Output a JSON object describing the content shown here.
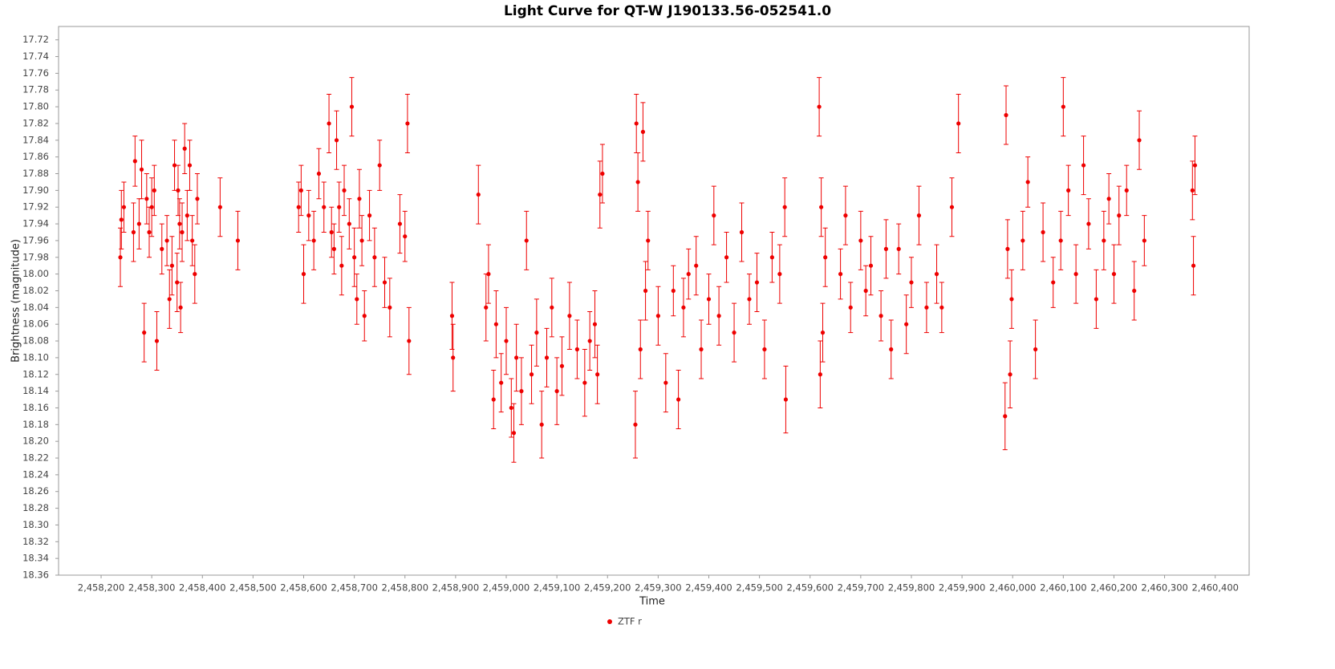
{
  "chart_data": {
    "type": "scatter",
    "title": "Light Curve for QT-W J190133.56-052541.0",
    "x_label": "Time",
    "y_label": "Brightness (magnitude)",
    "ylim": [
      18.36,
      17.704
    ],
    "xlim": [
      2458116,
      2460467
    ],
    "legend": "bottom",
    "grid": false,
    "xticks": [
      {
        "value": 2458200,
        "label": "2,458,200"
      },
      {
        "value": 2458300,
        "label": "2,458,300"
      },
      {
        "value": 2458400,
        "label": "2,458,400"
      },
      {
        "value": 2458500,
        "label": "2,458,500"
      },
      {
        "value": 2458600,
        "label": "2,458,600"
      },
      {
        "value": 2458700,
        "label": "2,458,700"
      },
      {
        "value": 2458800,
        "label": "2,458,800"
      },
      {
        "value": 2458900,
        "label": "2,458,900"
      },
      {
        "value": 2459000,
        "label": "2,459,000"
      },
      {
        "value": 2459100,
        "label": "2,459,100"
      },
      {
        "value": 2459200,
        "label": "2,459,200"
      },
      {
        "value": 2459300,
        "label": "2,459,300"
      },
      {
        "value": 2459400,
        "label": "2,459,400"
      },
      {
        "value": 2459500,
        "label": "2,459,500"
      },
      {
        "value": 2459600,
        "label": "2,459,600"
      },
      {
        "value": 2459700,
        "label": "2,459,700"
      },
      {
        "value": 2459800,
        "label": "2,459,800"
      },
      {
        "value": 2459900,
        "label": "2,459,900"
      },
      {
        "value": 2460000,
        "label": "2,460,000"
      },
      {
        "value": 2460100,
        "label": "2,460,100"
      },
      {
        "value": 2460200,
        "label": "2,460,200"
      },
      {
        "value": 2460300,
        "label": "2,460,300"
      },
      {
        "value": 2460400,
        "label": "2,460,400"
      }
    ],
    "yticks": [
      17.72,
      17.74,
      17.76,
      17.78,
      {
        "value": 17.8,
        "label": "17.80"
      },
      17.82,
      17.84,
      17.86,
      17.88,
      {
        "value": 17.9,
        "label": "17.90"
      },
      17.92,
      17.94,
      17.96,
      17.98,
      {
        "value": 18.0,
        "label": "18.00"
      },
      18.02,
      18.04,
      18.06,
      18.08,
      {
        "value": 18.1,
        "label": "18.10"
      },
      18.12,
      18.14,
      18.16,
      18.18,
      {
        "value": 18.2,
        "label": "18.20"
      },
      18.22,
      18.24,
      18.26,
      18.28,
      {
        "value": 18.3,
        "label": "18.30"
      },
      18.32,
      18.34,
      18.36
    ],
    "series": [
      {
        "name": "ZTF r",
        "color": "#ee0000",
        "x": [
          2458238,
          2458240,
          2458245,
          2458264,
          2458267,
          2458275,
          2458280,
          2458285,
          2458290,
          2458295,
          2458300,
          2458305,
          2458310,
          2458320,
          2458330,
          2458335,
          2458340,
          2458345,
          2458350,
          2458352,
          2458355,
          2458357,
          2458360,
          2458365,
          2458370,
          2458375,
          2458380,
          2458385,
          2458390,
          2458435,
          2458470,
          2458590,
          2458595,
          2458600,
          2458610,
          2458620,
          2458630,
          2458640,
          2458650,
          2458655,
          2458660,
          2458665,
          2458670,
          2458675,
          2458680,
          2458690,
          2458695,
          2458700,
          2458705,
          2458710,
          2458715,
          2458720,
          2458730,
          2458740,
          2458750,
          2458760,
          2458770,
          2458790,
          2458800,
          2458805,
          2458808,
          2458893,
          2458895,
          2458945,
          2458960,
          2458965,
          2458975,
          2458980,
          2458990,
          2459000,
          2459010,
          2459015,
          2459020,
          2459030,
          2459040,
          2459050,
          2459060,
          2459070,
          2459080,
          2459090,
          2459100,
          2459110,
          2459125,
          2459140,
          2459155,
          2459165,
          2459175,
          2459180,
          2459185,
          2459190,
          2459255,
          2459257,
          2459260,
          2459265,
          2459270,
          2459275,
          2459280,
          2459300,
          2459315,
          2459330,
          2459340,
          2459350,
          2459360,
          2459375,
          2459385,
          2459400,
          2459410,
          2459420,
          2459435,
          2459450,
          2459465,
          2459480,
          2459495,
          2459510,
          2459525,
          2459540,
          2459550,
          2459552,
          2459618,
          2459620,
          2459622,
          2459625,
          2459630,
          2459660,
          2459670,
          2459680,
          2459700,
          2459710,
          2459720,
          2459740,
          2459750,
          2459760,
          2459775,
          2459790,
          2459800,
          2459815,
          2459830,
          2459850,
          2459860,
          2459880,
          2459893,
          2459985,
          2459987,
          2459990,
          2459995,
          2459998,
          2460020,
          2460030,
          2460045,
          2460060,
          2460080,
          2460095,
          2460100,
          2460110,
          2460125,
          2460140,
          2460150,
          2460165,
          2460180,
          2460190,
          2460200,
          2460210,
          2460225,
          2460240,
          2460250,
          2460260,
          2460355,
          2460357,
          2460360
        ],
        "values": [
          17.98,
          17.935,
          17.92,
          17.95,
          17.865,
          17.94,
          17.875,
          18.07,
          17.91,
          17.95,
          17.92,
          17.9,
          18.08,
          17.97,
          17.96,
          18.03,
          17.99,
          17.87,
          18.01,
          17.9,
          17.94,
          18.04,
          17.95,
          17.85,
          17.93,
          17.87,
          17.96,
          18.0,
          17.91,
          17.92,
          17.96,
          17.92,
          17.9,
          18.0,
          17.93,
          17.96,
          17.88,
          17.92,
          17.82,
          17.95,
          17.97,
          17.84,
          17.92,
          17.99,
          17.9,
          17.94,
          17.8,
          17.98,
          18.03,
          17.91,
          17.96,
          18.05,
          17.93,
          17.98,
          17.87,
          18.01,
          18.04,
          17.94,
          17.955,
          17.82,
          18.08,
          18.05,
          18.1,
          17.905,
          18.04,
          18.0,
          18.15,
          18.06,
          18.13,
          18.08,
          18.16,
          18.19,
          18.1,
          18.14,
          17.96,
          18.12,
          18.07,
          18.18,
          18.1,
          18.04,
          18.14,
          18.11,
          18.05,
          18.09,
          18.13,
          18.08,
          18.06,
          18.12,
          17.905,
          17.88,
          18.18,
          17.82,
          17.89,
          18.09,
          17.83,
          18.02,
          17.96,
          18.05,
          18.13,
          18.02,
          18.15,
          18.04,
          18.0,
          17.99,
          18.09,
          18.03,
          17.93,
          18.05,
          17.98,
          18.07,
          17.95,
          18.03,
          18.01,
          18.09,
          17.98,
          18.0,
          17.92,
          18.15,
          17.8,
          18.12,
          17.92,
          18.07,
          17.98,
          18.0,
          17.93,
          18.04,
          17.96,
          18.02,
          17.99,
          18.05,
          17.97,
          18.09,
          17.97,
          18.06,
          18.01,
          17.93,
          18.04,
          18.0,
          18.04,
          17.92,
          17.82,
          18.17,
          17.81,
          17.97,
          18.12,
          18.03,
          17.96,
          17.89,
          18.09,
          17.95,
          18.01,
          17.96,
          17.8,
          17.9,
          18.0,
          17.87,
          17.94,
          18.03,
          17.96,
          17.91,
          18.0,
          17.93,
          17.9,
          18.02,
          17.84,
          17.96,
          17.9,
          17.99,
          17.87
        ],
        "errors": [
          0.035,
          0.035,
          0.03,
          0.035,
          0.03,
          0.03,
          0.035,
          0.035,
          0.03,
          0.03,
          0.035,
          0.03,
          0.035,
          0.03,
          0.03,
          0.035,
          0.035,
          0.03,
          0.035,
          0.03,
          0.03,
          0.03,
          0.035,
          0.03,
          0.03,
          0.03,
          0.03,
          0.035,
          0.03,
          0.035,
          0.035,
          0.03,
          0.03,
          0.035,
          0.03,
          0.035,
          0.03,
          0.03,
          0.035,
          0.03,
          0.03,
          0.035,
          0.03,
          0.035,
          0.03,
          0.03,
          0.035,
          0.035,
          0.03,
          0.035,
          0.03,
          0.03,
          0.03,
          0.035,
          0.03,
          0.03,
          0.035,
          0.035,
          0.03,
          0.035,
          0.04,
          0.04,
          0.04,
          0.035,
          0.04,
          0.035,
          0.035,
          0.04,
          0.035,
          0.04,
          0.035,
          0.035,
          0.04,
          0.04,
          0.035,
          0.035,
          0.04,
          0.04,
          0.035,
          0.035,
          0.04,
          0.035,
          0.04,
          0.035,
          0.04,
          0.035,
          0.04,
          0.035,
          0.04,
          0.035,
          0.04,
          0.035,
          0.035,
          0.035,
          0.035,
          0.035,
          0.035,
          0.035,
          0.035,
          0.03,
          0.035,
          0.035,
          0.03,
          0.035,
          0.035,
          0.03,
          0.035,
          0.035,
          0.03,
          0.035,
          0.035,
          0.03,
          0.035,
          0.035,
          0.03,
          0.035,
          0.035,
          0.04,
          0.035,
          0.04,
          0.035,
          0.035,
          0.035,
          0.03,
          0.035,
          0.03,
          0.035,
          0.03,
          0.035,
          0.03,
          0.035,
          0.035,
          0.03,
          0.035,
          0.03,
          0.035,
          0.03,
          0.035,
          0.03,
          0.035,
          0.035,
          0.04,
          0.035,
          0.035,
          0.04,
          0.035,
          0.035,
          0.03,
          0.035,
          0.035,
          0.03,
          0.035,
          0.035,
          0.03,
          0.035,
          0.035,
          0.03,
          0.035,
          0.035,
          0.03,
          0.035,
          0.035,
          0.03,
          0.035,
          0.035,
          0.03,
          0.035,
          0.035,
          0.035
        ]
      }
    ]
  }
}
